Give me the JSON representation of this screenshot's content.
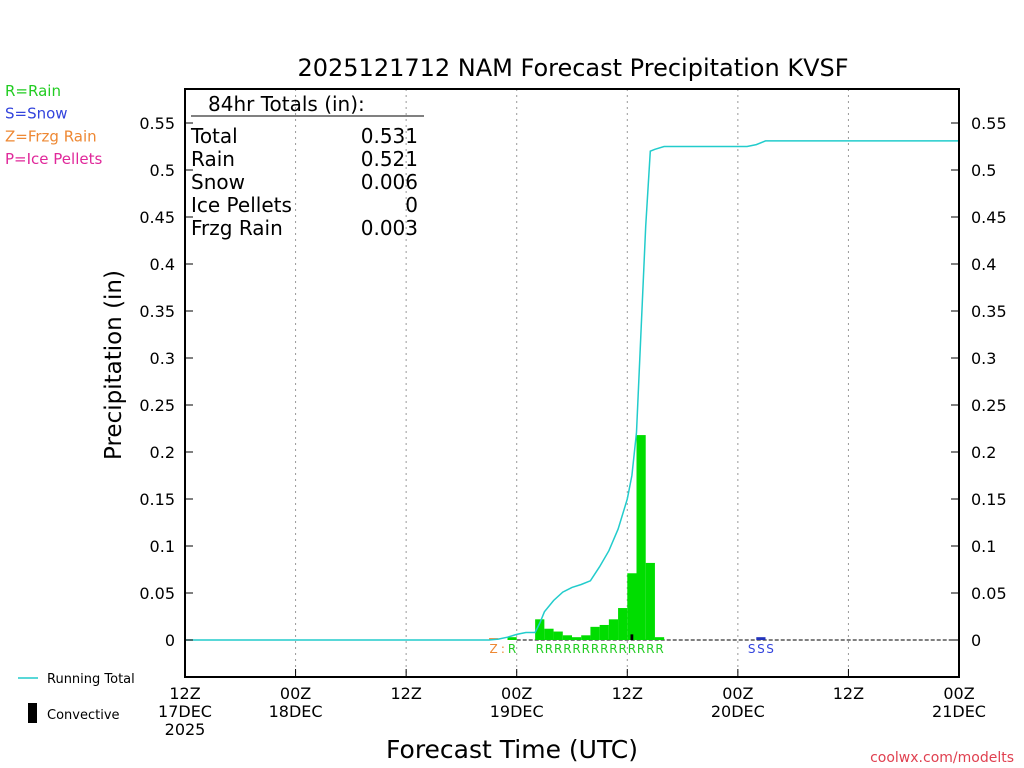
{
  "chart_data": {
    "type": "bar",
    "title": "2025121712 NAM Forecast Precipitation KVSF",
    "xlabel": "Forecast Time (UTC)",
    "ylabel": "Precipitation (in)",
    "ylim": [
      -0.04,
      0.585
    ],
    "y_ticks": [
      0,
      0.05,
      0.1,
      0.15,
      0.2,
      0.25,
      0.3,
      0.35,
      0.4,
      0.45,
      0.5,
      0.55
    ],
    "y_tick_labels": [
      "0",
      "0.05",
      "0.1",
      "0.15",
      "0.2",
      "0.25",
      "0.3",
      "0.35",
      "0.4",
      "0.45",
      "0.5",
      "0.55"
    ],
    "xlim_hours": [
      0,
      84
    ],
    "x_ticks": [
      {
        "hour": 0,
        "lines": [
          "12Z",
          "17DEC",
          "2025"
        ]
      },
      {
        "hour": 12,
        "lines": [
          "00Z",
          "18DEC"
        ]
      },
      {
        "hour": 24,
        "lines": [
          "12Z"
        ]
      },
      {
        "hour": 36,
        "lines": [
          "00Z",
          "19DEC"
        ]
      },
      {
        "hour": 48,
        "lines": [
          "12Z"
        ]
      },
      {
        "hour": 60,
        "lines": [
          "00Z",
          "20DEC"
        ]
      },
      {
        "hour": 72,
        "lines": [
          "12Z"
        ]
      },
      {
        "hour": 84,
        "lines": [
          "00Z",
          "21DEC"
        ]
      }
    ],
    "grid": "vertical dotted at tick marks",
    "legend_position": "left",
    "legend_top": [
      {
        "label": "R=Rain",
        "color": "#22cc22"
      },
      {
        "label": "S=Snow",
        "color": "#3344dd"
      },
      {
        "label": "Z=Frzg Rain",
        "color": "#ee8833"
      },
      {
        "label": "P=Ice Pellets",
        "color": "#e0289a"
      }
    ],
    "legend_bottom": [
      {
        "label": "Running Total",
        "symbol": "line",
        "color": "#22cccc"
      },
      {
        "label": "Convective",
        "symbol": "bar",
        "color": "#000000"
      }
    ],
    "totals_box": {
      "title": "84hr Totals (in):",
      "rows": [
        {
          "label": "Total",
          "value": "0.531"
        },
        {
          "label": "Rain",
          "value": "0.521"
        },
        {
          "label": "Snow",
          "value": "0.006"
        },
        {
          "label": "Ice Pellets",
          "value": "0"
        },
        {
          "label": "Frzg Rain",
          "value": "0.003"
        }
      ]
    },
    "bars": [
      {
        "hour": 34,
        "value": 0.002,
        "type": "Z"
      },
      {
        "hour": 36,
        "value": 0.003,
        "type": "R"
      },
      {
        "hour": 39,
        "value": 0.022,
        "type": "R"
      },
      {
        "hour": 40,
        "value": 0.012,
        "type": "R"
      },
      {
        "hour": 41,
        "value": 0.009,
        "type": "R"
      },
      {
        "hour": 42,
        "value": 0.005,
        "type": "R"
      },
      {
        "hour": 43,
        "value": 0.003,
        "type": "R"
      },
      {
        "hour": 44,
        "value": 0.005,
        "type": "R"
      },
      {
        "hour": 45,
        "value": 0.014,
        "type": "R"
      },
      {
        "hour": 46,
        "value": 0.016,
        "type": "R"
      },
      {
        "hour": 47,
        "value": 0.022,
        "type": "R"
      },
      {
        "hour": 48,
        "value": 0.034,
        "type": "R"
      },
      {
        "hour": 49,
        "value": 0.071,
        "type": "R"
      },
      {
        "hour": 50,
        "value": 0.218,
        "type": "R"
      },
      {
        "hour": 51,
        "value": 0.082,
        "type": "R"
      },
      {
        "hour": 52,
        "value": 0.003,
        "type": "R"
      },
      {
        "hour": 63,
        "value": 0.003,
        "type": "S"
      }
    ],
    "convective_bars": [
      {
        "hour": 49,
        "value": 0.006
      }
    ],
    "running_total": {
      "name": "Running Total",
      "hours": [
        0,
        33,
        34,
        35,
        36,
        37,
        38,
        38.5,
        39,
        40,
        41,
        42,
        43,
        44,
        45,
        46,
        47,
        48,
        48.5,
        49,
        50,
        50.5,
        51,
        52,
        56,
        58,
        60,
        61,
        62,
        63,
        64,
        72,
        84
      ],
      "values": [
        0,
        0,
        0.001,
        0.003,
        0.006,
        0.008,
        0.008,
        0.018,
        0.03,
        0.042,
        0.051,
        0.056,
        0.059,
        0.063,
        0.078,
        0.095,
        0.118,
        0.15,
        0.175,
        0.221,
        0.44,
        0.52,
        0.522,
        0.525,
        0.525,
        0.525,
        0.525,
        0.525,
        0.527,
        0.531,
        0.531,
        0.531,
        0.531
      ]
    },
    "type_markers": [
      {
        "hour": 34,
        "label": "Z",
        "color": "#ee8833"
      },
      {
        "hour": 35,
        "label": ":",
        "color": "#ee8833"
      },
      {
        "hour": 36,
        "label": "R",
        "color": "#22cc22"
      },
      {
        "hour": 39,
        "label": "R",
        "color": "#22cc22"
      },
      {
        "hour": 40,
        "label": "R",
        "color": "#22cc22"
      },
      {
        "hour": 41,
        "label": "R",
        "color": "#22cc22"
      },
      {
        "hour": 42,
        "label": "R",
        "color": "#22cc22"
      },
      {
        "hour": 43,
        "label": "R",
        "color": "#22cc22"
      },
      {
        "hour": 44,
        "label": "R",
        "color": "#22cc22"
      },
      {
        "hour": 45,
        "label": "R",
        "color": "#22cc22"
      },
      {
        "hour": 46,
        "label": "R",
        "color": "#22cc22"
      },
      {
        "hour": 47,
        "label": "R",
        "color": "#22cc22"
      },
      {
        "hour": 48,
        "label": "R",
        "color": "#22cc22"
      },
      {
        "hour": 49,
        "label": "R",
        "color": "#22cc22"
      },
      {
        "hour": 50,
        "label": "R",
        "color": "#22cc22"
      },
      {
        "hour": 51,
        "label": "R",
        "color": "#22cc22"
      },
      {
        "hour": 52,
        "label": "R",
        "color": "#22cc22"
      },
      {
        "hour": 62,
        "label": "S",
        "color": "#3344dd"
      },
      {
        "hour": 63,
        "label": "S",
        "color": "#3344dd"
      },
      {
        "hour": 64,
        "label": "S",
        "color": "#3344dd"
      }
    ],
    "colors": {
      "Rain": "#00dd00",
      "Snow": "#2233bb",
      "Frzg Rain": "#ee8833",
      "Ice Pellets": "#e0289a",
      "Running Total": "#22cccc",
      "Convective": "#000000"
    },
    "credit": "coolwx.com/modelts"
  }
}
